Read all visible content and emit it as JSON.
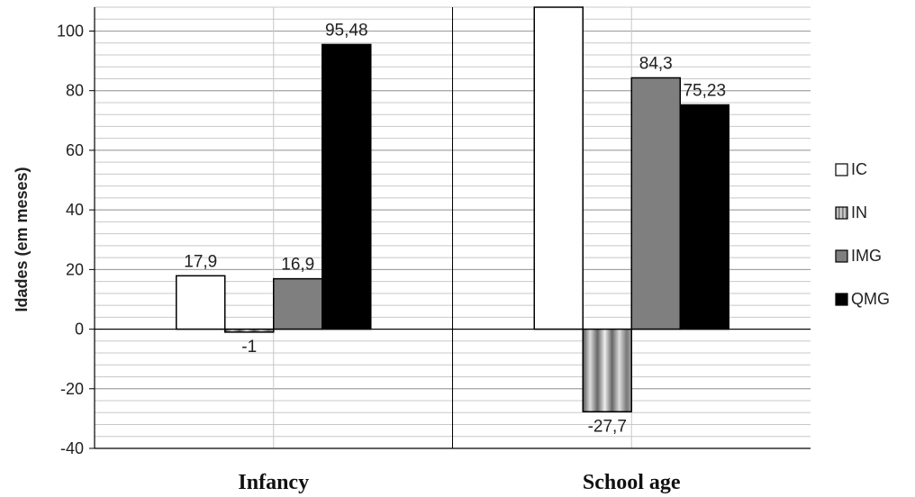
{
  "chart_data": {
    "type": "bar",
    "ylabel": "Idades (em meses)",
    "ylim": [
      -40,
      100
    ],
    "yticks": [
      -40,
      -20,
      0,
      20,
      40,
      60,
      80,
      100
    ],
    "categories": [
      "Infancy",
      "School age"
    ],
    "grid": true,
    "legend_position": "right",
    "series": [
      {
        "name": "IC",
        "values": [
          17.9,
          108
        ],
        "labels": [
          "17,9",
          ""
        ],
        "color": "#ffffff",
        "pattern": "none"
      },
      {
        "name": "IN",
        "values": [
          -1,
          -27.7
        ],
        "labels": [
          "-1",
          "-27,7"
        ],
        "color": "#bdbdbd",
        "pattern": "vertical-stripes"
      },
      {
        "name": "IMG",
        "values": [
          16.9,
          84.3
        ],
        "labels": [
          "16,9",
          "84,3"
        ],
        "color": "#7f7f7f",
        "pattern": "none"
      },
      {
        "name": "QMG",
        "values": [
          95.48,
          75.23
        ],
        "labels": [
          "95,48",
          "75,23"
        ],
        "color": "#000000",
        "pattern": "none"
      }
    ]
  }
}
